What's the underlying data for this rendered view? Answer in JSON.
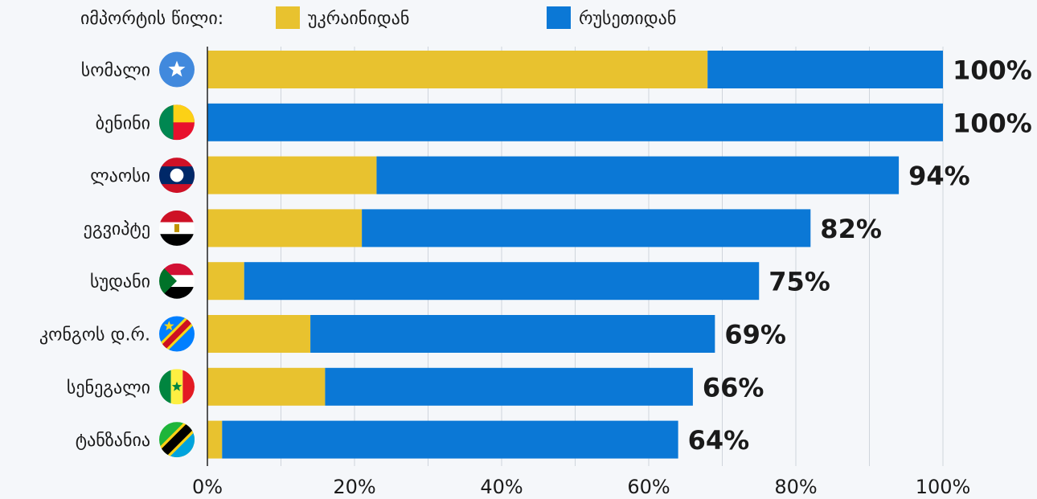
{
  "chart_data": {
    "type": "bar",
    "orientation": "horizontal",
    "stacked": true,
    "legend": {
      "title": "იმპორტის წილი:",
      "placement": "top-left"
    },
    "categories": [
      "სომალი",
      "ბენინი",
      "ლაოსი",
      "ეგვიპტე",
      "სუდანი",
      "კონგოს დ.რ.",
      "სენეგალი",
      "ტანზანია"
    ],
    "series": [
      {
        "name": "უკრაინიდან",
        "color": "#e8c22f",
        "values": [
          68,
          0,
          23,
          21,
          5,
          14,
          16,
          2
        ]
      },
      {
        "name": "რუსეთიდან",
        "color": "#0b78d6",
        "values": [
          32,
          100,
          71,
          61,
          70,
          55,
          50,
          62
        ]
      }
    ],
    "totals": [
      "100%",
      "100%",
      "94%",
      "82%",
      "75%",
      "69%",
      "66%",
      "64%"
    ],
    "flags": [
      "flag-somalia-icon",
      "flag-benin-icon",
      "flag-laos-icon",
      "flag-egypt-icon",
      "flag-sudan-icon",
      "flag-dr-congo-icon",
      "flag-senegal-icon",
      "flag-tanzania-icon"
    ],
    "xticks": [
      0,
      20,
      40,
      60,
      80,
      100
    ],
    "xtick_labels": [
      "0%",
      "20%",
      "40%",
      "60%",
      "80%",
      "100%"
    ],
    "xlim": [
      0,
      100
    ],
    "grid": true
  }
}
